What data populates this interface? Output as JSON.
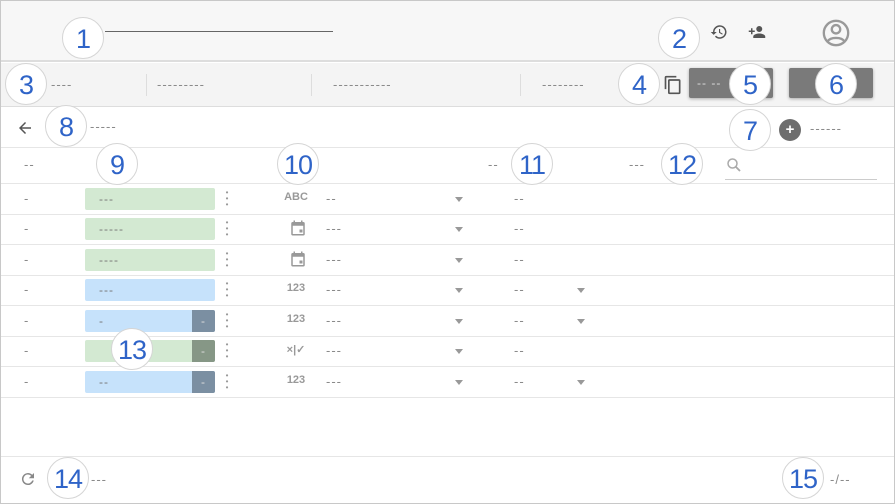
{
  "header": {
    "title": "———————————————",
    "icons": [
      "history-icon",
      "add-person-icon",
      "account-circle-icon"
    ]
  },
  "toolbar": {
    "tabs": [
      "----",
      "---------",
      "-----------",
      "--------"
    ],
    "copy_icon": "copy-icon",
    "button_primary": "-- --",
    "button_secondary": ""
  },
  "subheader": {
    "back_icon": "arrow-left-icon",
    "title": "-----",
    "add_icon": "plus-circle-icon",
    "add_label": "------"
  },
  "table": {
    "columns": [
      "--",
      "--",
      "---"
    ],
    "search_placeholder": "",
    "rows": [
      {
        "index": "-",
        "chip": "---",
        "chip_color": "green",
        "chip_end": "",
        "type_icon": "ABC",
        "value": "--",
        "col3": "--",
        "has_caret2": false
      },
      {
        "index": "-",
        "chip": "-----",
        "chip_color": "green",
        "chip_end": "",
        "type_icon": "calendar",
        "value": "---",
        "col3": "--",
        "has_caret2": false
      },
      {
        "index": "-",
        "chip": "----",
        "chip_color": "green",
        "chip_end": "",
        "type_icon": "calendar",
        "value": "---",
        "col3": "--",
        "has_caret2": false
      },
      {
        "index": "-",
        "chip": "---",
        "chip_color": "blue",
        "chip_end": "",
        "type_icon": "123",
        "value": "---",
        "col3": "--",
        "has_caret2": true
      },
      {
        "index": "-",
        "chip": "-",
        "chip_color": "blue",
        "chip_end": "-",
        "type_icon": "123",
        "value": "---",
        "col3": "--",
        "has_caret2": true
      },
      {
        "index": "-",
        "chip": "",
        "chip_color": "green",
        "chip_end": "-",
        "type_icon": "×|✓",
        "value": "---",
        "col3": "--",
        "has_caret2": false
      },
      {
        "index": "-",
        "chip": "--",
        "chip_color": "blue",
        "chip_end": "-",
        "type_icon": "123",
        "value": "---",
        "col3": "--",
        "has_caret2": true
      }
    ]
  },
  "footer": {
    "refresh_icon": "refresh-icon",
    "status": "---",
    "pagination": "-/--"
  },
  "callouts": [
    "1",
    "2",
    "3",
    "4",
    "5",
    "6",
    "7",
    "8",
    "9",
    "10",
    "11",
    "12",
    "13",
    "14",
    "15"
  ],
  "colors": {
    "callout_text": "#2f64c8",
    "chip_green": "#d3e9d2",
    "chip_blue": "#c6e2fb",
    "button": "#7a7a7a"
  }
}
